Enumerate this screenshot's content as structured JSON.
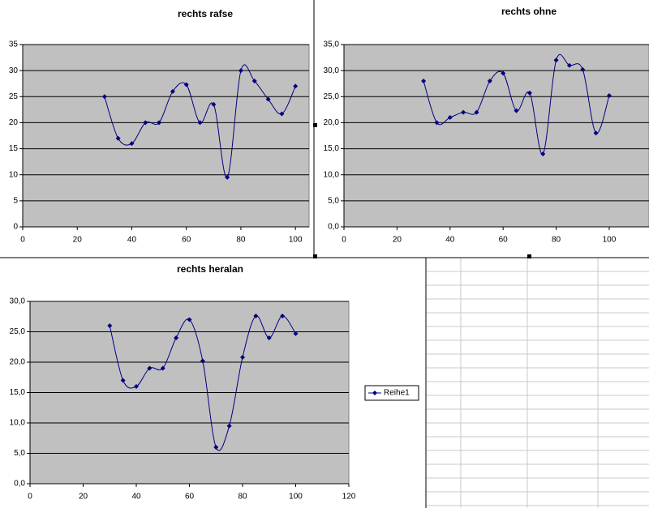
{
  "chart_data": [
    {
      "type": "line",
      "title": "rechts rafse",
      "smooth": true,
      "grid": true,
      "x": [
        30,
        35,
        40,
        45,
        50,
        55,
        60,
        65,
        70,
        75,
        80,
        85,
        90,
        95,
        100
      ],
      "series": [
        {
          "color": "#000080",
          "values": [
            25,
            17,
            16,
            20,
            20,
            26,
            27.3,
            20,
            23.5,
            9.5,
            30,
            28,
            24.5,
            21.7,
            27
          ]
        }
      ],
      "xlim": [
        0,
        105
      ],
      "xticks": [
        0,
        20,
        40,
        60,
        80,
        100
      ],
      "ylim": [
        0,
        35
      ],
      "yticks": [
        0,
        5,
        10,
        15,
        20,
        25,
        30,
        35
      ]
    },
    {
      "type": "line",
      "title": "rechts ohne",
      "smooth": true,
      "grid": true,
      "x": [
        30,
        35,
        40,
        45,
        50,
        55,
        60,
        65,
        70,
        75,
        80,
        85,
        90,
        95,
        100
      ],
      "series": [
        {
          "color": "#000080",
          "values": [
            28,
            20,
            21,
            22,
            22,
            28,
            29.5,
            22.3,
            25.7,
            14,
            32,
            31,
            30.2,
            18,
            25.2
          ]
        }
      ],
      "xlim": [
        0,
        115
      ],
      "xticks": [
        0,
        20,
        40,
        60,
        80,
        100
      ],
      "ylim": [
        0,
        35
      ],
      "yticks": [
        {
          "value": 0,
          "label": "0,0"
        },
        {
          "value": 5,
          "label": "5,0"
        },
        {
          "value": 10,
          "label": "10,0"
        },
        {
          "value": 15,
          "label": "15,0"
        },
        {
          "value": 20,
          "label": "20,0"
        },
        {
          "value": 25,
          "label": "25,0"
        },
        {
          "value": 30,
          "label": "30,0"
        },
        {
          "value": 35,
          "label": "35,0"
        }
      ]
    },
    {
      "type": "line",
      "title": "rechts heralan",
      "smooth": true,
      "grid": true,
      "legend": "right",
      "x": [
        30,
        35,
        40,
        45,
        50,
        55,
        60,
        65,
        70,
        75,
        80,
        85,
        90,
        95,
        100
      ],
      "series": [
        {
          "name": "Reihe1",
          "color": "#000080",
          "values": [
            26,
            17,
            16,
            19,
            19,
            24,
            27,
            20.2,
            6,
            9.5,
            20.8,
            27.6,
            24,
            27.6,
            24.7
          ]
        }
      ],
      "xlim": [
        0,
        120
      ],
      "xticks": [
        0,
        20,
        40,
        60,
        80,
        100,
        120
      ],
      "ylim": [
        0,
        30
      ],
      "yticks": [
        {
          "value": 0,
          "label": "0,0"
        },
        {
          "value": 5,
          "label": "5,0"
        },
        {
          "value": 10,
          "label": "10,0"
        },
        {
          "value": 15,
          "label": "15,0"
        },
        {
          "value": 20,
          "label": "20,0"
        },
        {
          "value": 25,
          "label": "25,0"
        },
        {
          "value": 30,
          "label": "30,0"
        }
      ]
    }
  ]
}
